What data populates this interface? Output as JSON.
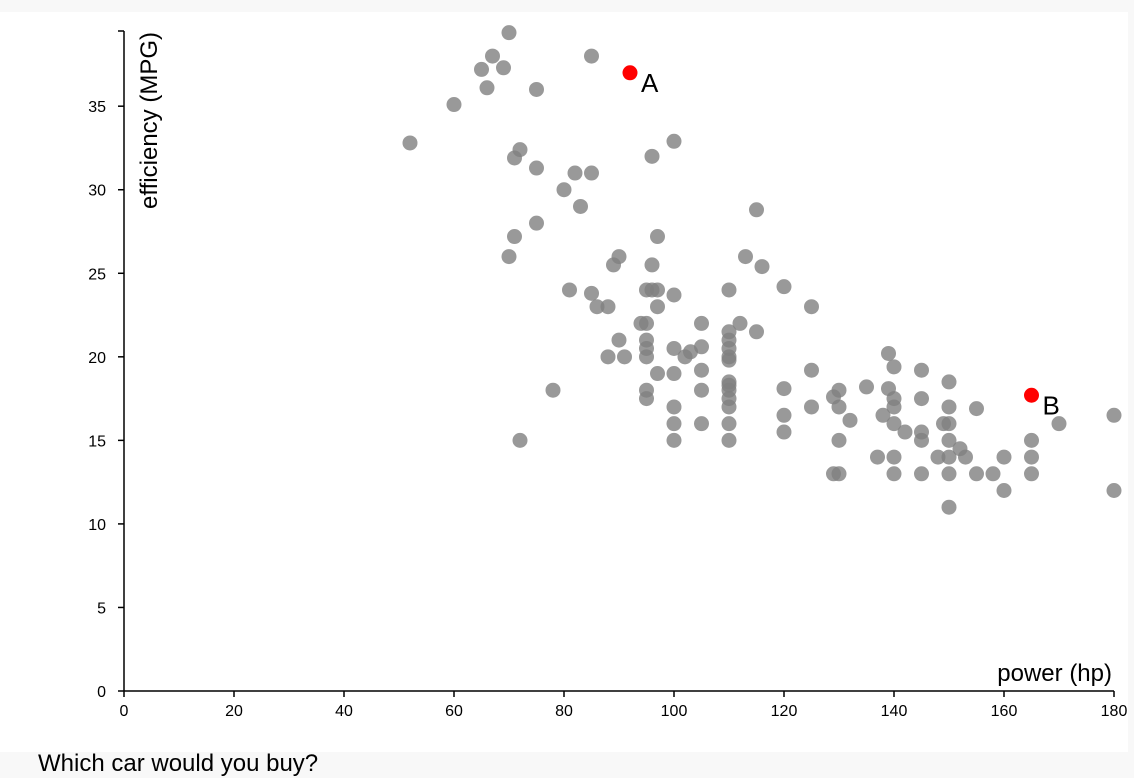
{
  "chart_data": {
    "type": "scatter",
    "title": "",
    "xlabel": "power (hp)",
    "ylabel": "efficiency (MPG)",
    "xlim": [
      0,
      180
    ],
    "ylim": [
      0,
      39.5
    ],
    "xticks": [
      0,
      20,
      40,
      60,
      80,
      100,
      120,
      140,
      160,
      180
    ],
    "yticks": [
      0,
      5,
      10,
      15,
      20,
      25,
      30,
      35
    ],
    "grid": false,
    "colors": {
      "points": "#808080",
      "highlight": "#ff0000"
    },
    "series": [
      {
        "points": [
          [
            52,
            32.8
          ],
          [
            60,
            35.1
          ],
          [
            65,
            37.2
          ],
          [
            66,
            36.1
          ],
          [
            67,
            38
          ],
          [
            69,
            37.3
          ],
          [
            70,
            39.4
          ],
          [
            75,
            36
          ],
          [
            85,
            38
          ],
          [
            71,
            31.9
          ],
          [
            72,
            32.4
          ],
          [
            75,
            31.3
          ],
          [
            70,
            26
          ],
          [
            71,
            27.2
          ],
          [
            75,
            28
          ],
          [
            80,
            30
          ],
          [
            82,
            31
          ],
          [
            83,
            29
          ],
          [
            85,
            31
          ],
          [
            96,
            32
          ],
          [
            100,
            32.9
          ],
          [
            78,
            18
          ],
          [
            72,
            15
          ],
          [
            81,
            24
          ],
          [
            85,
            23.8
          ],
          [
            86,
            23
          ],
          [
            88,
            23
          ],
          [
            89,
            25.5
          ],
          [
            90,
            26
          ],
          [
            90,
            21
          ],
          [
            88,
            20
          ],
          [
            91,
            20
          ],
          [
            94,
            22
          ],
          [
            95,
            22
          ],
          [
            95,
            24
          ],
          [
            95,
            21
          ],
          [
            95,
            20.5
          ],
          [
            95,
            20
          ],
          [
            95,
            18
          ],
          [
            95,
            17.5
          ],
          [
            96,
            25.5
          ],
          [
            96,
            24
          ],
          [
            97,
            24
          ],
          [
            97,
            23
          ],
          [
            97,
            27.2
          ],
          [
            97,
            19
          ],
          [
            100,
            23.7
          ],
          [
            100,
            20.5
          ],
          [
            100,
            19
          ],
          [
            100,
            17
          ],
          [
            100,
            16
          ],
          [
            100,
            15
          ],
          [
            102,
            20
          ],
          [
            103,
            20.3
          ],
          [
            105,
            22
          ],
          [
            105,
            20.6
          ],
          [
            105,
            19.2
          ],
          [
            105,
            18
          ],
          [
            105,
            16
          ],
          [
            110,
            24
          ],
          [
            110,
            21.5
          ],
          [
            110,
            21
          ],
          [
            110,
            20.5
          ],
          [
            110,
            20
          ],
          [
            110,
            19.8
          ],
          [
            110,
            18.5
          ],
          [
            110,
            18.3
          ],
          [
            110,
            18
          ],
          [
            110,
            17.5
          ],
          [
            110,
            17
          ],
          [
            110,
            16
          ],
          [
            110,
            15
          ],
          [
            112,
            22
          ],
          [
            113,
            26
          ],
          [
            115,
            28.8
          ],
          [
            115,
            21.5
          ],
          [
            116,
            25.4
          ],
          [
            120,
            24.2
          ],
          [
            120,
            18.1
          ],
          [
            120,
            16.5
          ],
          [
            120,
            15.5
          ],
          [
            125,
            23
          ],
          [
            125,
            19.2
          ],
          [
            125,
            17
          ],
          [
            129,
            17.6
          ],
          [
            129,
            13
          ],
          [
            130,
            18
          ],
          [
            130,
            17
          ],
          [
            130,
            15
          ],
          [
            130,
            13
          ],
          [
            132,
            16.2
          ],
          [
            135,
            18.2
          ],
          [
            137,
            14
          ],
          [
            138,
            16.5
          ],
          [
            139,
            20.2
          ],
          [
            139,
            18.1
          ],
          [
            140,
            19.4
          ],
          [
            140,
            17.5
          ],
          [
            140,
            17
          ],
          [
            140,
            16
          ],
          [
            140,
            14
          ],
          [
            140,
            13
          ],
          [
            142,
            15.5
          ],
          [
            145,
            19.2
          ],
          [
            145,
            17.5
          ],
          [
            145,
            15.5
          ],
          [
            145,
            15
          ],
          [
            145,
            13
          ],
          [
            148,
            14
          ],
          [
            149,
            16
          ],
          [
            150,
            18.5
          ],
          [
            150,
            17
          ],
          [
            150,
            16
          ],
          [
            150,
            15
          ],
          [
            150,
            14
          ],
          [
            150,
            13
          ],
          [
            150,
            11
          ],
          [
            152,
            14.5
          ],
          [
            153,
            14
          ],
          [
            155,
            16.9
          ],
          [
            155,
            13
          ],
          [
            158,
            13
          ],
          [
            160,
            14
          ],
          [
            160,
            12
          ],
          [
            165,
            15
          ],
          [
            165,
            14
          ],
          [
            165,
            13
          ],
          [
            170,
            16
          ],
          [
            180,
            16.5
          ],
          [
            180,
            12
          ]
        ]
      }
    ],
    "highlighted": [
      {
        "label": "A",
        "x": 92,
        "y": 37
      },
      {
        "label": "B",
        "x": 165,
        "y": 17.7
      }
    ]
  },
  "question": "Which car would you buy?"
}
